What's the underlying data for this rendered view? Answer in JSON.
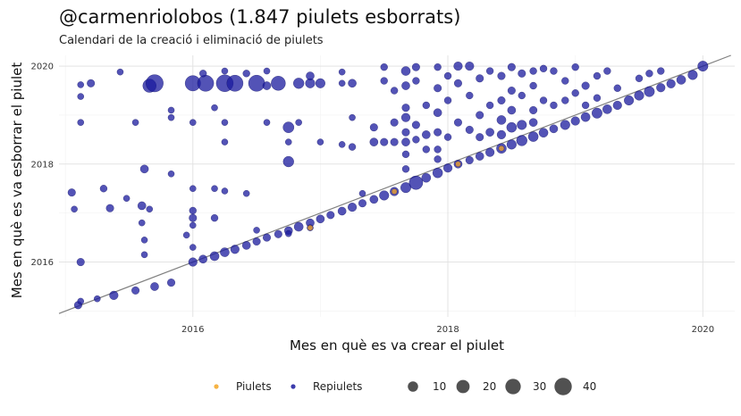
{
  "chart_data": {
    "type": "scatter",
    "title": "@carmenriolobos (1.847 piulets esborrats)",
    "subtitle": "Calendari de la creació i eliminació de piulets",
    "xlabel": "Mes en què es va crear el piulet",
    "ylabel": "Mes en què es va esborrar el piulet",
    "xlim": [
      2014.95,
      2020.25
    ],
    "ylim": [
      2014.88,
      2020.22
    ],
    "x_ticks": [
      2016,
      2018,
      2020
    ],
    "y_ticks": [
      2016,
      2018,
      2020
    ],
    "x_tick_labels": [
      "2016",
      "2018",
      "2020"
    ],
    "y_tick_labels": [
      "2016",
      "2018",
      "2020"
    ],
    "grid": true,
    "reference_line": "y = x",
    "legend_position": "bottom",
    "colors": {
      "Piulets": "#f5a623",
      "Repiulets": "#1a1a9e",
      "line": "#808080"
    },
    "legend": {
      "type_entries": [
        {
          "label": "Piulets",
          "color": "#f5a623"
        },
        {
          "label": "Repiulets",
          "color": "#1a1a9e"
        }
      ],
      "size_entries": [
        {
          "label": "10",
          "value": 10
        },
        {
          "label": "20",
          "value": 20
        },
        {
          "label": "30",
          "value": 30
        },
        {
          "label": "40",
          "value": 40
        }
      ]
    },
    "series": [
      {
        "name": "Repiulets",
        "points": [
          [
            2015.1,
            2015.12,
            4
          ],
          [
            2015.12,
            2015.2,
            2
          ],
          [
            2015.25,
            2015.25,
            2
          ],
          [
            2015.38,
            2015.32,
            6
          ],
          [
            2015.55,
            2015.42,
            4
          ],
          [
            2015.7,
            2015.5,
            5
          ],
          [
            2015.83,
            2015.58,
            4
          ],
          [
            2015.05,
            2017.42,
            4
          ],
          [
            2015.07,
            2017.08,
            2
          ],
          [
            2015.12,
            2016.0,
            4
          ],
          [
            2015.12,
            2018.85,
            2
          ],
          [
            2015.12,
            2019.38,
            2
          ],
          [
            2015.12,
            2019.62,
            2
          ],
          [
            2015.2,
            2019.65,
            4
          ],
          [
            2015.3,
            2017.5,
            3
          ],
          [
            2015.35,
            2017.1,
            4
          ],
          [
            2015.43,
            2019.88,
            2
          ],
          [
            2015.48,
            2017.3,
            2
          ],
          [
            2015.55,
            2018.85,
            2
          ],
          [
            2015.6,
            2017.15,
            5
          ],
          [
            2015.6,
            2016.8,
            2
          ],
          [
            2015.62,
            2016.45,
            2
          ],
          [
            2015.62,
            2016.15,
            2
          ],
          [
            2015.62,
            2017.9,
            5
          ],
          [
            2015.66,
            2019.6,
            21
          ],
          [
            2015.66,
            2017.08,
            2
          ],
          [
            2015.7,
            2019.65,
            40
          ],
          [
            2015.83,
            2017.8,
            2
          ],
          [
            2015.83,
            2018.95,
            2
          ],
          [
            2015.83,
            2019.1,
            2
          ],
          [
            2015.95,
            2016.55,
            2
          ],
          [
            2016.0,
            2016.0,
            6
          ],
          [
            2016.08,
            2016.06,
            5
          ],
          [
            2016.17,
            2016.12,
            7
          ],
          [
            2016.25,
            2016.2,
            7
          ],
          [
            2016.33,
            2016.26,
            6
          ],
          [
            2016.42,
            2016.34,
            5
          ],
          [
            2016.5,
            2016.42,
            4
          ],
          [
            2016.58,
            2016.5,
            4
          ],
          [
            2016.67,
            2016.57,
            4
          ],
          [
            2016.75,
            2016.64,
            5
          ],
          [
            2016.83,
            2016.72,
            7
          ],
          [
            2016.92,
            2016.8,
            5
          ],
          [
            2017.0,
            2016.88,
            5
          ],
          [
            2017.08,
            2016.96,
            4
          ],
          [
            2017.17,
            2017.04,
            5
          ],
          [
            2017.25,
            2017.12,
            6
          ],
          [
            2017.33,
            2017.2,
            4
          ],
          [
            2017.42,
            2017.28,
            5
          ],
          [
            2017.5,
            2017.36,
            8
          ],
          [
            2017.58,
            2017.44,
            6
          ],
          [
            2017.67,
            2017.52,
            10
          ],
          [
            2017.75,
            2017.62,
            22
          ],
          [
            2017.83,
            2017.72,
            7
          ],
          [
            2017.92,
            2017.82,
            9
          ],
          [
            2018.0,
            2017.92,
            6
          ],
          [
            2018.08,
            2018.0,
            5
          ],
          [
            2018.17,
            2018.08,
            4
          ],
          [
            2018.25,
            2018.16,
            5
          ],
          [
            2018.33,
            2018.24,
            6
          ],
          [
            2018.42,
            2018.32,
            9
          ],
          [
            2018.5,
            2018.4,
            8
          ],
          [
            2018.58,
            2018.48,
            11
          ],
          [
            2018.67,
            2018.56,
            9
          ],
          [
            2018.75,
            2018.64,
            7
          ],
          [
            2018.83,
            2018.72,
            5
          ],
          [
            2018.92,
            2018.8,
            8
          ],
          [
            2019.0,
            2018.88,
            6
          ],
          [
            2019.08,
            2018.96,
            7
          ],
          [
            2019.17,
            2019.04,
            10
          ],
          [
            2019.25,
            2019.12,
            7
          ],
          [
            2019.33,
            2019.2,
            6
          ],
          [
            2019.42,
            2019.3,
            8
          ],
          [
            2019.5,
            2019.4,
            8
          ],
          [
            2019.58,
            2019.48,
            10
          ],
          [
            2019.67,
            2019.56,
            6
          ],
          [
            2019.75,
            2019.64,
            6
          ],
          [
            2019.83,
            2019.72,
            7
          ],
          [
            2019.92,
            2019.82,
            8
          ],
          [
            2020.0,
            2020.0,
            10
          ],
          [
            2016.0,
            2019.65,
            30
          ],
          [
            2016.1,
            2019.65,
            34
          ],
          [
            2016.25,
            2019.65,
            38
          ],
          [
            2016.33,
            2019.65,
            34
          ],
          [
            2016.5,
            2019.65,
            34
          ],
          [
            2016.67,
            2019.65,
            25
          ],
          [
            2016.83,
            2019.65,
            11
          ],
          [
            2017.0,
            2019.65,
            8
          ],
          [
            2017.25,
            2019.65,
            5
          ],
          [
            2016.92,
            2019.65,
            8
          ],
          [
            2016.08,
            2019.85,
            3
          ],
          [
            2016.25,
            2019.9,
            2
          ],
          [
            2016.42,
            2019.85,
            3
          ],
          [
            2016.58,
            2019.9,
            2
          ],
          [
            2016.58,
            2019.6,
            5
          ],
          [
            2016.92,
            2019.8,
            5
          ],
          [
            2017.17,
            2019.88,
            2
          ],
          [
            2017.17,
            2019.65,
            2
          ],
          [
            2016.0,
            2017.05,
            3
          ],
          [
            2016.0,
            2016.9,
            4
          ],
          [
            2016.0,
            2016.75,
            2
          ],
          [
            2016.0,
            2016.3,
            2
          ],
          [
            2016.0,
            2017.5,
            2
          ],
          [
            2016.0,
            2018.85,
            2
          ],
          [
            2016.17,
            2016.9,
            3
          ],
          [
            2016.17,
            2017.5,
            2
          ],
          [
            2016.17,
            2019.15,
            2
          ],
          [
            2016.25,
            2018.85,
            2
          ],
          [
            2016.25,
            2018.45,
            2
          ],
          [
            2016.25,
            2017.45,
            2
          ],
          [
            2016.42,
            2017.4,
            2
          ],
          [
            2016.5,
            2016.65,
            2
          ],
          [
            2016.58,
            2018.85,
            2
          ],
          [
            2016.75,
            2016.58,
            2
          ],
          [
            2016.92,
            2016.7,
            2
          ],
          [
            2016.75,
            2018.75,
            12
          ],
          [
            2016.75,
            2018.05,
            11
          ],
          [
            2016.75,
            2018.45,
            2
          ],
          [
            2016.83,
            2018.85,
            2
          ],
          [
            2017.0,
            2018.45,
            2
          ],
          [
            2017.17,
            2018.4,
            2
          ],
          [
            2017.25,
            2018.95,
            2
          ],
          [
            2017.25,
            2018.35,
            3
          ],
          [
            2017.33,
            2017.4,
            2
          ],
          [
            2017.42,
            2018.45,
            5
          ],
          [
            2017.42,
            2018.75,
            4
          ],
          [
            2017.5,
            2018.45,
            4
          ],
          [
            2017.5,
            2019.7,
            3
          ],
          [
            2017.5,
            2019.98,
            3
          ],
          [
            2017.58,
            2019.5,
            3
          ],
          [
            2017.58,
            2018.85,
            4
          ],
          [
            2017.58,
            2018.45,
            4
          ],
          [
            2017.67,
            2019.9,
            7
          ],
          [
            2017.67,
            2019.6,
            5
          ],
          [
            2017.67,
            2019.15,
            4
          ],
          [
            2017.67,
            2018.95,
            6
          ],
          [
            2017.67,
            2018.65,
            4
          ],
          [
            2017.67,
            2018.45,
            5
          ],
          [
            2017.67,
            2018.2,
            3
          ],
          [
            2017.67,
            2017.9,
            3
          ],
          [
            2017.75,
            2019.98,
            4
          ],
          [
            2017.75,
            2019.7,
            3
          ],
          [
            2017.75,
            2018.8,
            4
          ],
          [
            2017.75,
            2018.5,
            3
          ],
          [
            2017.83,
            2019.2,
            3
          ],
          [
            2017.83,
            2018.6,
            5
          ],
          [
            2017.83,
            2018.3,
            3
          ],
          [
            2017.92,
            2019.98,
            3
          ],
          [
            2017.92,
            2019.55,
            4
          ],
          [
            2017.92,
            2019.05,
            5
          ],
          [
            2017.92,
            2018.65,
            4
          ],
          [
            2017.92,
            2018.3,
            3
          ],
          [
            2017.92,
            2018.1,
            3
          ],
          [
            2018.0,
            2019.8,
            3
          ],
          [
            2018.0,
            2019.3,
            3
          ],
          [
            2018.0,
            2018.55,
            3
          ],
          [
            2018.08,
            2020.0,
            6
          ],
          [
            2018.08,
            2019.65,
            4
          ],
          [
            2018.08,
            2018.85,
            4
          ],
          [
            2018.17,
            2020.0,
            6
          ],
          [
            2018.17,
            2019.4,
            3
          ],
          [
            2018.17,
            2018.7,
            4
          ],
          [
            2018.25,
            2019.75,
            4
          ],
          [
            2018.25,
            2019.0,
            4
          ],
          [
            2018.25,
            2018.55,
            4
          ],
          [
            2018.33,
            2019.9,
            3
          ],
          [
            2018.33,
            2019.2,
            3
          ],
          [
            2018.33,
            2018.65,
            5
          ],
          [
            2018.42,
            2019.8,
            4
          ],
          [
            2018.42,
            2019.3,
            4
          ],
          [
            2018.42,
            2018.9,
            7
          ],
          [
            2018.42,
            2018.6,
            6
          ],
          [
            2018.5,
            2019.98,
            4
          ],
          [
            2018.5,
            2019.5,
            4
          ],
          [
            2018.5,
            2019.1,
            5
          ],
          [
            2018.5,
            2018.75,
            9
          ],
          [
            2018.58,
            2019.85,
            4
          ],
          [
            2018.58,
            2019.4,
            3
          ],
          [
            2018.58,
            2018.8,
            8
          ],
          [
            2018.67,
            2019.9,
            3
          ],
          [
            2018.67,
            2019.6,
            3
          ],
          [
            2018.67,
            2019.1,
            4
          ],
          [
            2018.67,
            2018.85,
            5
          ],
          [
            2018.75,
            2019.95,
            3
          ],
          [
            2018.75,
            2019.3,
            3
          ],
          [
            2018.83,
            2019.9,
            3
          ],
          [
            2018.83,
            2019.2,
            3
          ],
          [
            2018.92,
            2019.7,
            3
          ],
          [
            2018.92,
            2019.3,
            3
          ],
          [
            2019.0,
            2019.98,
            3
          ],
          [
            2019.0,
            2019.45,
            3
          ],
          [
            2019.08,
            2019.6,
            4
          ],
          [
            2019.08,
            2019.2,
            3
          ],
          [
            2019.17,
            2019.8,
            3
          ],
          [
            2019.17,
            2019.35,
            3
          ],
          [
            2019.25,
            2019.9,
            3
          ],
          [
            2019.33,
            2019.55,
            3
          ],
          [
            2019.5,
            2019.75,
            3
          ],
          [
            2019.58,
            2019.85,
            3
          ],
          [
            2019.67,
            2019.9,
            3
          ]
        ]
      },
      {
        "name": "Piulets",
        "points": [
          [
            2016.92,
            2016.7,
            1
          ],
          [
            2017.58,
            2017.44,
            1
          ],
          [
            2018.08,
            2018.0,
            1
          ],
          [
            2018.42,
            2018.32,
            1
          ]
        ]
      }
    ]
  }
}
